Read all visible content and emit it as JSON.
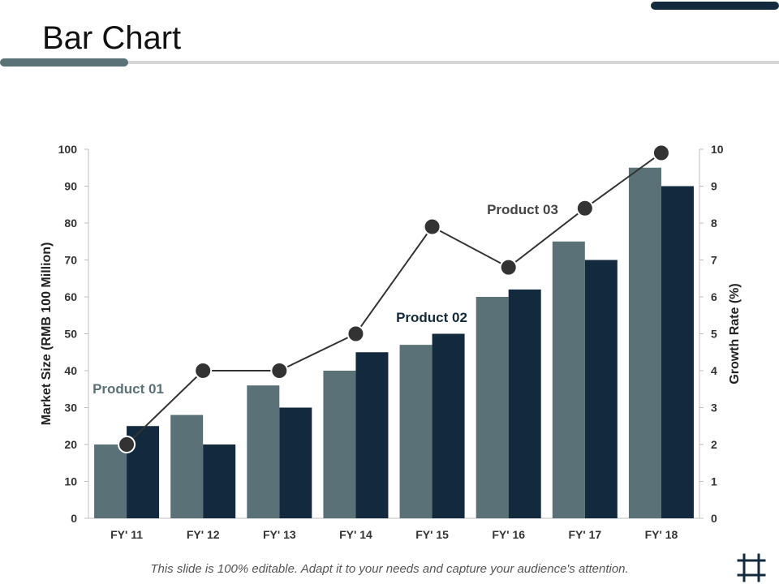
{
  "slide": {
    "title": "Bar Chart",
    "footer": "This slide is 100% editable. Adapt it to your needs and capture your audience's attention.",
    "colors": {
      "accent_dark": "#13293d",
      "accent_gray": "#5a7178",
      "rule": "#d6d6d6"
    },
    "icon": "crop-icon"
  },
  "chart_data": {
    "type": "bar",
    "categories": [
      "FY' 11",
      "FY' 12",
      "FY' 13",
      "FY' 14",
      "FY' 15",
      "FY' 16",
      "FY' 17",
      "FY' 18"
    ],
    "series": [
      {
        "name": "Product 01",
        "type": "bar",
        "axis": "left",
        "color": "#5a7178",
        "values": [
          20,
          28,
          36,
          40,
          47,
          60,
          75,
          95
        ]
      },
      {
        "name": "Product 02",
        "type": "bar",
        "axis": "left",
        "color": "#13293d",
        "values": [
          25,
          20,
          30,
          45,
          50,
          62,
          70,
          90
        ]
      },
      {
        "name": "Product 03",
        "type": "line",
        "axis": "right",
        "color": "#333333",
        "values": [
          2,
          4,
          4,
          5,
          7.9,
          6.8,
          8.4,
          9.9
        ]
      }
    ],
    "ylabel": "Market Size (RMB 100 Million)",
    "y2label": "Growth Rate (%)",
    "ylim": [
      0,
      100
    ],
    "y2lim": [
      0,
      10
    ],
    "yticks": [
      "0",
      "10",
      "20",
      "30",
      "40",
      "50",
      "60",
      "70",
      "80",
      "90",
      "100"
    ],
    "y2ticks": [
      "0",
      "1",
      "2",
      "3",
      "4",
      "5",
      "6",
      "7",
      "8",
      "9",
      "10"
    ],
    "grid": false,
    "legend": "inline labels"
  }
}
